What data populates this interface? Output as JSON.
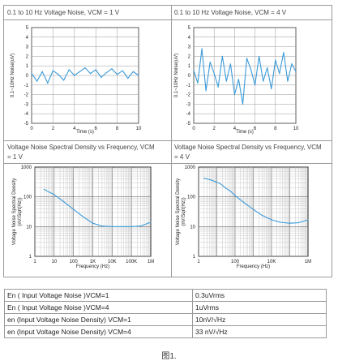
{
  "panels": {
    "p1": {
      "title": "0.1 to 10 Hz Voltage Noise, VCM = 1 V"
    },
    "p2": {
      "title": "0.1 to 10 Hz Voltage Noise, VCM = 4 V"
    },
    "p3": {
      "title_line1": "Voltage Noise Spectral Density vs Frequency, VCM",
      "title_line2": "= 1 V"
    },
    "p4": {
      "title_line1": "Voltage Noise Spectral Density vs Frequency, VCM",
      "title_line2": "= 4 V"
    }
  },
  "chart_data": [
    {
      "type": "line",
      "title": "0.1 to 10 Hz Voltage Noise, VCM = 1 V",
      "xlabel": "Time (s)",
      "ylabel": "0.1~10Hz Noise(uV)",
      "xlim": [
        0,
        10
      ],
      "ylim": [
        -5,
        5
      ],
      "xticks": [
        "0",
        "2",
        "4",
        "6",
        "8",
        "10"
      ],
      "yticks": [
        "5",
        "4",
        "3",
        "2",
        "1",
        "0",
        "-1",
        "-2",
        "-3",
        "-4",
        "-5"
      ],
      "grid": true,
      "color": "#3a9ad9",
      "x": [
        0.0,
        0.5,
        1.0,
        1.5,
        2.0,
        2.5,
        3.0,
        3.5,
        4.0,
        4.5,
        5.0,
        5.5,
        6.0,
        6.5,
        7.0,
        7.5,
        8.0,
        8.5,
        9.0,
        9.5,
        10.0
      ],
      "y": [
        0.2,
        -0.6,
        0.4,
        -0.8,
        0.5,
        0.1,
        -0.5,
        0.6,
        0.0,
        0.4,
        0.8,
        0.2,
        0.6,
        -0.2,
        0.3,
        0.7,
        0.1,
        0.5,
        -0.3,
        0.4,
        0.0
      ]
    },
    {
      "type": "line",
      "title": "0.1 to 10 Hz Voltage Noise, VCM = 4 V",
      "xlabel": "Time (s)",
      "ylabel": "0.1~10Hz Noise(uV)",
      "xlim": [
        0,
        10
      ],
      "ylim": [
        -5,
        5
      ],
      "xticks": [
        "0",
        "2",
        "4",
        "6",
        "8",
        "10"
      ],
      "yticks": [
        "5",
        "4",
        "3",
        "2",
        "1",
        "0",
        "-1",
        "-2",
        "-3",
        "-4",
        "-5"
      ],
      "grid": true,
      "color": "#3a9ad9",
      "x": [
        0.0,
        0.4,
        0.8,
        1.2,
        1.6,
        2.0,
        2.4,
        2.8,
        3.2,
        3.6,
        4.0,
        4.4,
        4.8,
        5.2,
        5.6,
        6.0,
        6.4,
        6.8,
        7.2,
        7.6,
        8.0,
        8.4,
        8.8,
        9.2,
        9.6,
        10.0
      ],
      "y": [
        0.5,
        -0.8,
        2.8,
        -1.6,
        1.4,
        0.2,
        -1.2,
        2.0,
        -0.6,
        1.2,
        -2.0,
        -0.4,
        -3.0,
        1.8,
        0.6,
        -1.0,
        2.0,
        -0.6,
        0.8,
        -1.4,
        1.6,
        0.2,
        2.4,
        -0.6,
        1.2,
        0.4
      ]
    },
    {
      "type": "line",
      "title": "Voltage Noise Spectral Density vs Frequency, VCM = 1 V",
      "xlabel": "Frequency (Hz)",
      "ylabel": "Voltage Noise Spectral Density (nV/Sqrt(Hz))",
      "xscale": "log",
      "yscale": "log",
      "xlim": [
        1,
        1000000
      ],
      "ylim": [
        1,
        1000
      ],
      "xticks": [
        "1",
        "10",
        "100",
        "1K",
        "10K",
        "100K",
        "1M"
      ],
      "yticks": [
        "1000",
        "100",
        "10",
        "1"
      ],
      "grid": true,
      "color": "#3a9ad9",
      "x": [
        3,
        6,
        10,
        30,
        100,
        300,
        1000,
        3000,
        10000,
        30000,
        100000,
        300000,
        1000000
      ],
      "y": [
        180,
        140,
        120,
        70,
        38,
        22,
        13,
        10.5,
        10,
        10,
        10,
        10.5,
        14
      ]
    },
    {
      "type": "line",
      "title": "Voltage Noise Spectral Density vs Frequency, VCM = 4 V",
      "xlabel": "Frequency (Hz)",
      "ylabel": "Voltage Noise Spectral Density (nV/Sqrt(Hz))",
      "xscale": "log",
      "yscale": "log",
      "xlim": [
        1,
        1000000
      ],
      "ylim": [
        1,
        1000
      ],
      "xticks": [
        "1",
        "100",
        "10K",
        "1M"
      ],
      "yticks": [
        "1000",
        "100",
        "10",
        "1"
      ],
      "grid": true,
      "color": "#3a9ad9",
      "x": [
        2,
        4,
        8,
        15,
        30,
        60,
        100,
        300,
        1000,
        3000,
        10000,
        30000,
        100000,
        300000,
        1000000
      ],
      "y": [
        420,
        380,
        330,
        280,
        200,
        150,
        110,
        65,
        38,
        24,
        17,
        14,
        13,
        13.5,
        17
      ]
    }
  ],
  "summary_table": {
    "rows": [
      {
        "label": "En ( Input Voltage Noise )VCM=1",
        "value": "0.3uVrms"
      },
      {
        "label": "En ( Input Voltage Noise )VCM=4",
        "value": "1uVrms"
      },
      {
        "label": "en (Input Voltage Noise Density) VCM=1",
        "value": "10nV/√Hz"
      },
      {
        "label": "en (Input Voltage Noise Density) VCM=4",
        "value": "33 nV/√Hz"
      }
    ]
  },
  "caption": "图1."
}
